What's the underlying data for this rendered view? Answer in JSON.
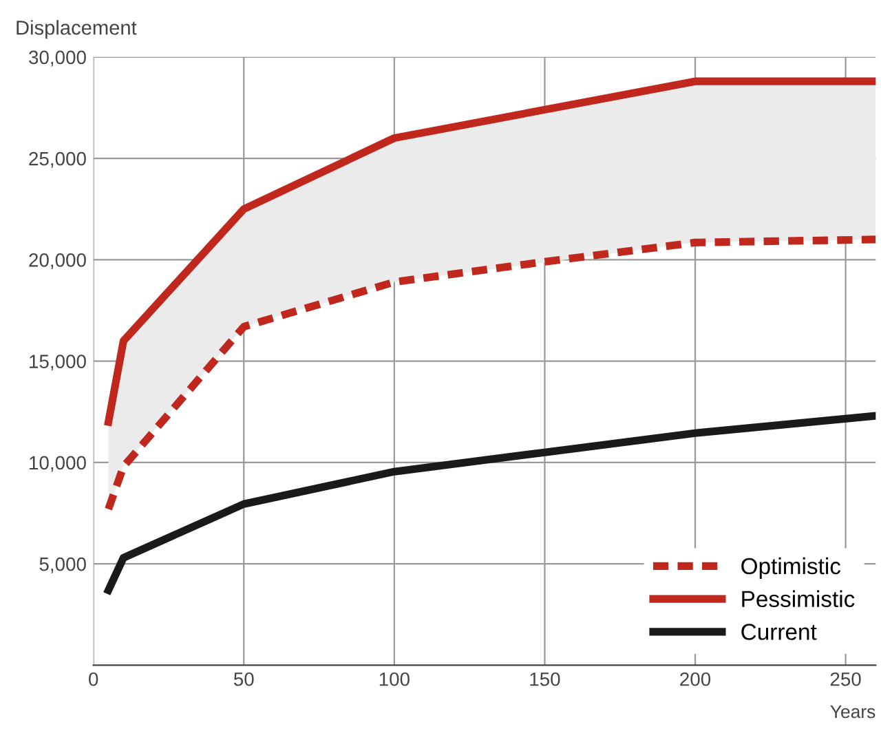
{
  "chart_data": {
    "type": "line",
    "ylabel": "Displacement",
    "xlabel": "Years",
    "series": [
      {
        "name": "Optimistic",
        "color": "#c0281e",
        "line_style": "dashed",
        "x": [
          5,
          10,
          50,
          100,
          150,
          200,
          260
        ],
        "values": [
          7700,
          9800,
          16700,
          18900,
          19900,
          20850,
          21000
        ]
      },
      {
        "name": "Pessimistic",
        "color": "#c0281e",
        "line_style": "solid",
        "x": [
          5,
          10,
          50,
          100,
          200,
          260
        ],
        "values": [
          12000,
          16000,
          22500,
          26000,
          28800,
          28800
        ],
        "lower": [
          7700,
          9800,
          16700,
          18900,
          20850,
          21000
        ],
        "upper": [
          12000,
          16000,
          22500,
          26000,
          28800,
          28800
        ]
      },
      {
        "name": "Current",
        "color": "#1a1a1a",
        "line_style": "solid",
        "x": [
          5,
          10,
          50,
          100,
          150,
          200,
          260
        ],
        "values": [
          3700,
          5300,
          7950,
          9550,
          10500,
          11450,
          12300
        ]
      }
    ],
    "xlim": [
      0,
      260
    ],
    "ylim": [
      0,
      30000
    ],
    "xticks": [
      0,
      50,
      100,
      150,
      200,
      250
    ],
    "yticks": [
      {
        "value": 5000,
        "label": "5,000"
      },
      {
        "value": 10000,
        "label": "10,000"
      },
      {
        "value": 15000,
        "label": "15,000"
      },
      {
        "value": 20000,
        "label": "20,000"
      },
      {
        "value": 25000,
        "label": "25,000"
      },
      {
        "value": 30000,
        "label": "30,000"
      }
    ],
    "grid": true,
    "legend": "bottom right"
  }
}
